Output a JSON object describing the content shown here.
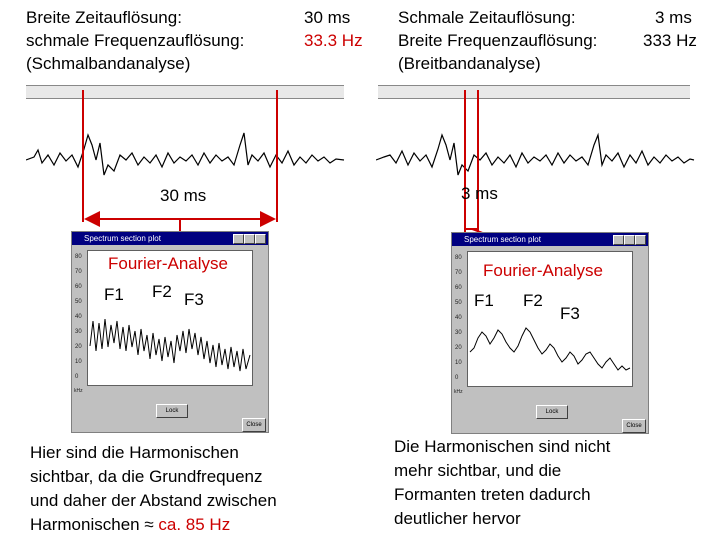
{
  "left": {
    "line1_label": "Breite Zeitauflösung:",
    "line1_value": "30 ms",
    "line2_label": "schmale Frequenzauflösung:",
    "line2_value": "33.3 Hz",
    "line3": "(Schmalbandanalyse)",
    "window_label": "30 ms",
    "analysis_label": "Fourier-Analyse",
    "f1": "F1",
    "f2": "F2",
    "f3": "F3",
    "paragraph_lines": [
      "Hier sind die Harmonischen",
      "sichtbar, da die Grundfrequenz",
      "und daher der Abstand zwischen"
    ],
    "paragraph_last_prefix": "Harmonischen ≈ ",
    "paragraph_last_value": "ca. 85 Hz"
  },
  "right": {
    "line1_label": "Schmale Zeitauflösung:",
    "line1_value": "3 ms",
    "line2_label": "Breite Frequenzauflösung:",
    "line2_value": "333 Hz",
    "line3": "(Breitbandanalyse)",
    "window_label": "3 ms",
    "analysis_label": "Fourier-Analyse",
    "f1": "F1",
    "f2": "F2",
    "f3": "F3",
    "paragraph_lines": [
      "Die Harmonischen sind nicht",
      "mehr sichtbar, und die",
      "Formanten treten dadurch",
      "deutlicher hervor"
    ]
  },
  "spectrum_window": {
    "title": "Spectrum section plot",
    "y_ticks": [
      "80",
      "70",
      "60",
      "50",
      "40",
      "30",
      "20",
      "10",
      "0"
    ],
    "x_unit": "kHz",
    "lock_button": "Lock",
    "close_button": "Close"
  },
  "colors": {
    "accent": "#cc0000",
    "titlebar": "#000080",
    "window": "#c0c0c0"
  }
}
